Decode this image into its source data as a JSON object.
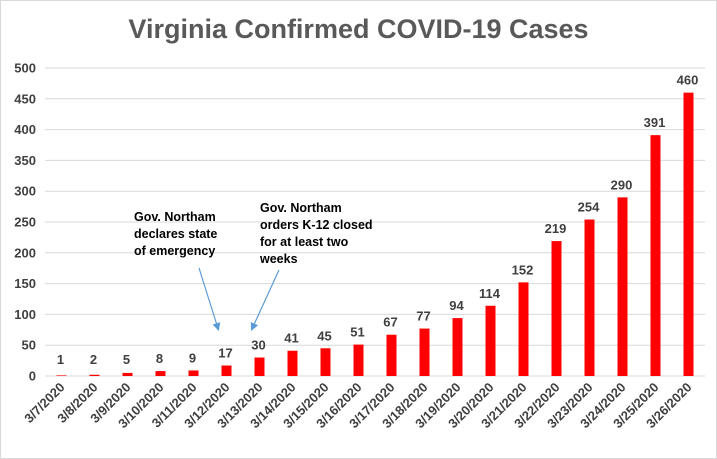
{
  "chart_data": {
    "type": "bar",
    "title": "Virginia Confirmed COVID-19 Cases",
    "xlabel": "",
    "ylabel": "",
    "ylim": [
      0,
      500
    ],
    "yticks": [
      0,
      50,
      100,
      150,
      200,
      250,
      300,
      350,
      400,
      450,
      500
    ],
    "categories": [
      "3/7/2020",
      "3/8/2020",
      "3/9/2020",
      "3/10/2020",
      "3/11/2020",
      "3/12/2020",
      "3/13/2020",
      "3/14/2020",
      "3/15/2020",
      "3/16/2020",
      "3/17/2020",
      "3/18/2020",
      "3/19/2020",
      "3/20/2020",
      "3/21/2020",
      "3/22/2020",
      "3/23/2020",
      "3/24/2020",
      "3/25/2020",
      "3/26/2020"
    ],
    "values": [
      1,
      2,
      5,
      8,
      9,
      17,
      30,
      41,
      45,
      51,
      67,
      77,
      94,
      114,
      152,
      219,
      254,
      290,
      391,
      460
    ],
    "grid": true,
    "bar_color": "#ff0000",
    "annotations": [
      {
        "text": "Gov. Northam declares state of emergency",
        "lines": [
          "Gov. Northam",
          "declares state",
          "of emergency"
        ],
        "points_to": "3/12/2020"
      },
      {
        "text": "Gov. Northam orders K-12 closed for at least two weeks",
        "lines": [
          "Gov. Northam",
          "orders K-12 closed",
          "for at least two",
          "weeks"
        ],
        "points_to": "3/13/2020"
      }
    ]
  }
}
